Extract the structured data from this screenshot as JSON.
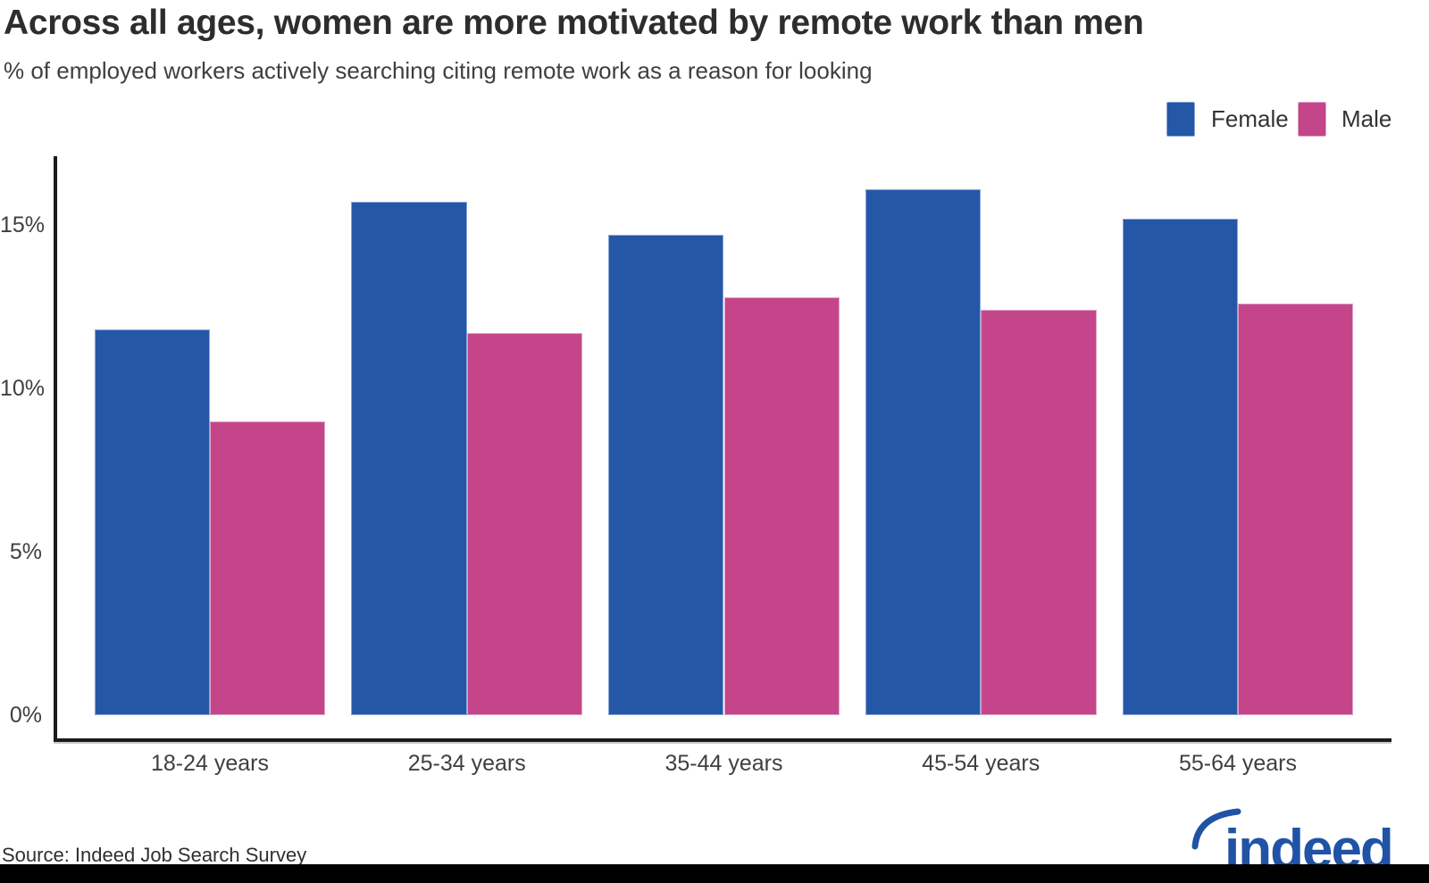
{
  "chart_data": {
    "type": "bar",
    "title": "Across all ages, women are more motivated by remote work than men",
    "subtitle": "% of employed workers actively searching citing remote work as a reason for looking",
    "categories": [
      "18-24 years",
      "25-34 years",
      "35-44 years",
      "45-54 years",
      "55-64 years"
    ],
    "series": [
      {
        "name": "Female",
        "color": "#2557a7",
        "border_color": "#8aa6d6",
        "values": [
          11.8,
          15.7,
          14.7,
          16.1,
          15.2
        ]
      },
      {
        "name": "Male",
        "color": "#c5458a",
        "border_color": "#dda4c7",
        "values": [
          9.0,
          11.7,
          12.8,
          12.4,
          12.6
        ]
      }
    ],
    "xlabel": "",
    "ylabel": "",
    "yticks": [
      {
        "value": 0,
        "label": "0%"
      },
      {
        "value": 5,
        "label": "5%"
      },
      {
        "value": 10,
        "label": "10%"
      },
      {
        "value": 15,
        "label": "15%"
      }
    ],
    "ylim": [
      0,
      17.1
    ],
    "grid": false,
    "legend_position": "top-right"
  },
  "footer": {
    "source": "Source: Indeed Job Search Survey",
    "logo_text": "indeed"
  },
  "colors": {
    "axis": "#1b1b1b",
    "title_text": "#2d2d2d",
    "body_text": "#3f3f3f",
    "logo_blue": "#2053a5",
    "bottom_strip": "#000000"
  }
}
